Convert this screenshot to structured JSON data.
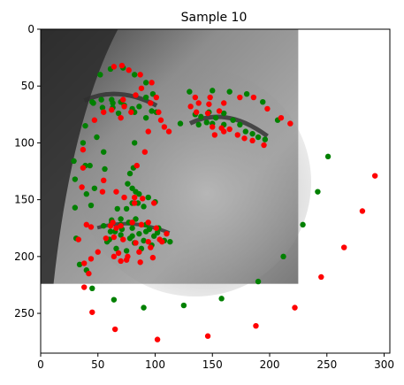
{
  "chart_data": {
    "type": "scatter",
    "title": "Sample 10",
    "xlabel": "",
    "ylabel": "",
    "xlim": [
      0,
      305
    ],
    "ylim": [
      285,
      0
    ],
    "y_inverted": true,
    "grid": false,
    "x_ticks": [
      0,
      50,
      100,
      150,
      200,
      250,
      300
    ],
    "y_ticks": [
      0,
      50,
      100,
      150,
      200,
      250
    ],
    "background_image": {
      "description_icon": "grayscale-face-photo-icon",
      "extent_x": [
        0,
        225
      ],
      "extent_y": [
        0,
        224
      ]
    },
    "series": [
      {
        "color": "#008000",
        "points": [
          [
            29,
            116
          ],
          [
            30,
            132
          ],
          [
            30,
            157
          ],
          [
            31,
            184
          ],
          [
            34,
            207
          ],
          [
            45,
            228
          ],
          [
            64,
            238
          ],
          [
            90,
            245
          ],
          [
            125,
            243
          ],
          [
            158,
            237
          ],
          [
            190,
            222
          ],
          [
            212,
            200
          ],
          [
            229,
            172
          ],
          [
            242,
            143
          ],
          [
            251,
            112
          ],
          [
            45,
            64
          ],
          [
            52,
            40
          ],
          [
            61,
            35
          ],
          [
            72,
            34
          ],
          [
            82,
            40
          ],
          [
            92,
            47
          ],
          [
            98,
            57
          ],
          [
            130,
            55
          ],
          [
            150,
            54
          ],
          [
            165,
            55
          ],
          [
            180,
            57
          ],
          [
            194,
            64
          ],
          [
            207,
            80
          ],
          [
            82,
            73
          ],
          [
            82,
            100
          ],
          [
            81,
            122
          ],
          [
            83,
            143
          ],
          [
            67,
            158
          ],
          [
            75,
            158
          ],
          [
            80,
            153
          ],
          [
            85,
            153
          ],
          [
            90,
            156
          ],
          [
            46,
            65
          ],
          [
            53,
            62
          ],
          [
            62,
            62
          ],
          [
            70,
            64
          ],
          [
            63,
            69
          ],
          [
            54,
            69
          ],
          [
            122,
            83
          ],
          [
            135,
            75
          ],
          [
            147,
            73
          ],
          [
            160,
            74
          ],
          [
            150,
            83
          ],
          [
            138,
            84
          ],
          [
            55,
            173
          ],
          [
            62,
            168
          ],
          [
            70,
            167
          ],
          [
            77,
            170
          ],
          [
            83,
            167
          ],
          [
            92,
            172
          ],
          [
            103,
            175
          ],
          [
            97,
            190
          ],
          [
            88,
            193
          ],
          [
            75,
            195
          ],
          [
            66,
            193
          ],
          [
            58,
            187
          ],
          [
            62,
            170
          ],
          [
            70,
            172
          ],
          [
            80,
            175
          ],
          [
            92,
            178
          ],
          [
            80,
            182
          ],
          [
            70,
            181
          ],
          [
            61,
            178
          ],
          [
            108,
            186
          ],
          [
            113,
            187
          ],
          [
            40,
            145
          ],
          [
            44,
            155
          ],
          [
            47,
            140
          ],
          [
            39,
            120
          ],
          [
            37,
            100
          ],
          [
            39,
            85
          ],
          [
            43,
            120
          ],
          [
            49,
            95
          ],
          [
            55,
            108
          ],
          [
            56,
            123
          ],
          [
            40,
            212
          ],
          [
            63,
            65
          ],
          [
            68,
            74
          ],
          [
            73,
            67
          ],
          [
            80,
            70
          ],
          [
            86,
            68
          ],
          [
            92,
            60
          ],
          [
            97,
            72
          ],
          [
            101,
            73
          ],
          [
            92,
            78
          ],
          [
            78,
            127
          ],
          [
            76,
            136
          ],
          [
            80,
            140
          ],
          [
            86,
            145
          ],
          [
            94,
            148
          ],
          [
            100,
            152
          ],
          [
            60,
            185
          ],
          [
            65,
            178
          ],
          [
            71,
            176
          ],
          [
            78,
            184
          ],
          [
            82,
            188
          ],
          [
            86,
            180
          ],
          [
            90,
            186
          ],
          [
            95,
            176
          ],
          [
            99,
            182
          ],
          [
            102,
            179
          ],
          [
            140,
            77
          ],
          [
            145,
            82
          ],
          [
            153,
            78
          ],
          [
            160,
            84
          ],
          [
            168,
            80
          ],
          [
            174,
            84
          ],
          [
            179,
            90
          ],
          [
            185,
            92
          ],
          [
            190,
            95
          ],
          [
            196,
            97
          ]
        ]
      },
      {
        "color": "#ff0000",
        "points": [
          [
            38,
            227
          ],
          [
            45,
            249
          ],
          [
            65,
            264
          ],
          [
            102,
            273
          ],
          [
            146,
            270
          ],
          [
            188,
            261
          ],
          [
            222,
            245
          ],
          [
            245,
            218
          ],
          [
            265,
            192
          ],
          [
            281,
            160
          ],
          [
            292,
            129
          ],
          [
            37,
            106
          ],
          [
            36,
            139
          ],
          [
            37,
            122
          ],
          [
            33,
            185
          ],
          [
            38,
            206
          ],
          [
            64,
            33
          ],
          [
            71,
            32
          ],
          [
            77,
            36
          ],
          [
            87,
            40
          ],
          [
            97,
            47
          ],
          [
            101,
            60
          ],
          [
            135,
            60
          ],
          [
            148,
            60
          ],
          [
            160,
            65
          ],
          [
            174,
            60
          ],
          [
            186,
            60
          ],
          [
            198,
            70
          ],
          [
            210,
            78
          ],
          [
            218,
            83
          ],
          [
            94,
            90
          ],
          [
            91,
            108
          ],
          [
            84,
            120
          ],
          [
            82,
            148
          ],
          [
            66,
            143
          ],
          [
            73,
            148
          ],
          [
            82,
            153
          ],
          [
            89,
            149
          ],
          [
            99,
            153
          ],
          [
            47,
            80
          ],
          [
            55,
            73
          ],
          [
            62,
            71
          ],
          [
            73,
            68
          ],
          [
            79,
            73
          ],
          [
            70,
            78
          ],
          [
            131,
            68
          ],
          [
            138,
            65
          ],
          [
            147,
            66
          ],
          [
            156,
            72
          ],
          [
            146,
            74
          ],
          [
            136,
            73
          ],
          [
            63,
            170
          ],
          [
            70,
            173
          ],
          [
            80,
            170
          ],
          [
            88,
            172
          ],
          [
            94,
            170
          ],
          [
            101,
            175
          ],
          [
            110,
            180
          ],
          [
            106,
            187
          ],
          [
            96,
            192
          ],
          [
            86,
            196
          ],
          [
            76,
            200
          ],
          [
            68,
            197
          ],
          [
            57,
            184
          ],
          [
            64,
            183
          ],
          [
            72,
            185
          ],
          [
            83,
            188
          ],
          [
            94,
            187
          ],
          [
            104,
            185
          ],
          [
            61,
            173
          ],
          [
            66,
            175
          ],
          [
            55,
            133
          ],
          [
            54,
            143
          ],
          [
            42,
            215
          ],
          [
            50,
            196
          ],
          [
            44,
            202
          ],
          [
            40,
            172
          ],
          [
            44,
            174
          ],
          [
            64,
            200
          ],
          [
            70,
            204
          ],
          [
            75,
            203
          ],
          [
            87,
            205
          ],
          [
            98,
            201
          ],
          [
            72,
            62
          ],
          [
            83,
            58
          ],
          [
            88,
            52
          ],
          [
            96,
            65
          ],
          [
            103,
            73
          ],
          [
            105,
            80
          ],
          [
            108,
            86
          ],
          [
            112,
            90
          ],
          [
            150,
            86
          ],
          [
            158,
            87
          ],
          [
            165,
            88
          ],
          [
            172,
            93
          ],
          [
            178,
            96
          ],
          [
            185,
            98
          ],
          [
            195,
            102
          ],
          [
            160,
            90
          ],
          [
            152,
            93
          ]
        ]
      }
    ]
  }
}
